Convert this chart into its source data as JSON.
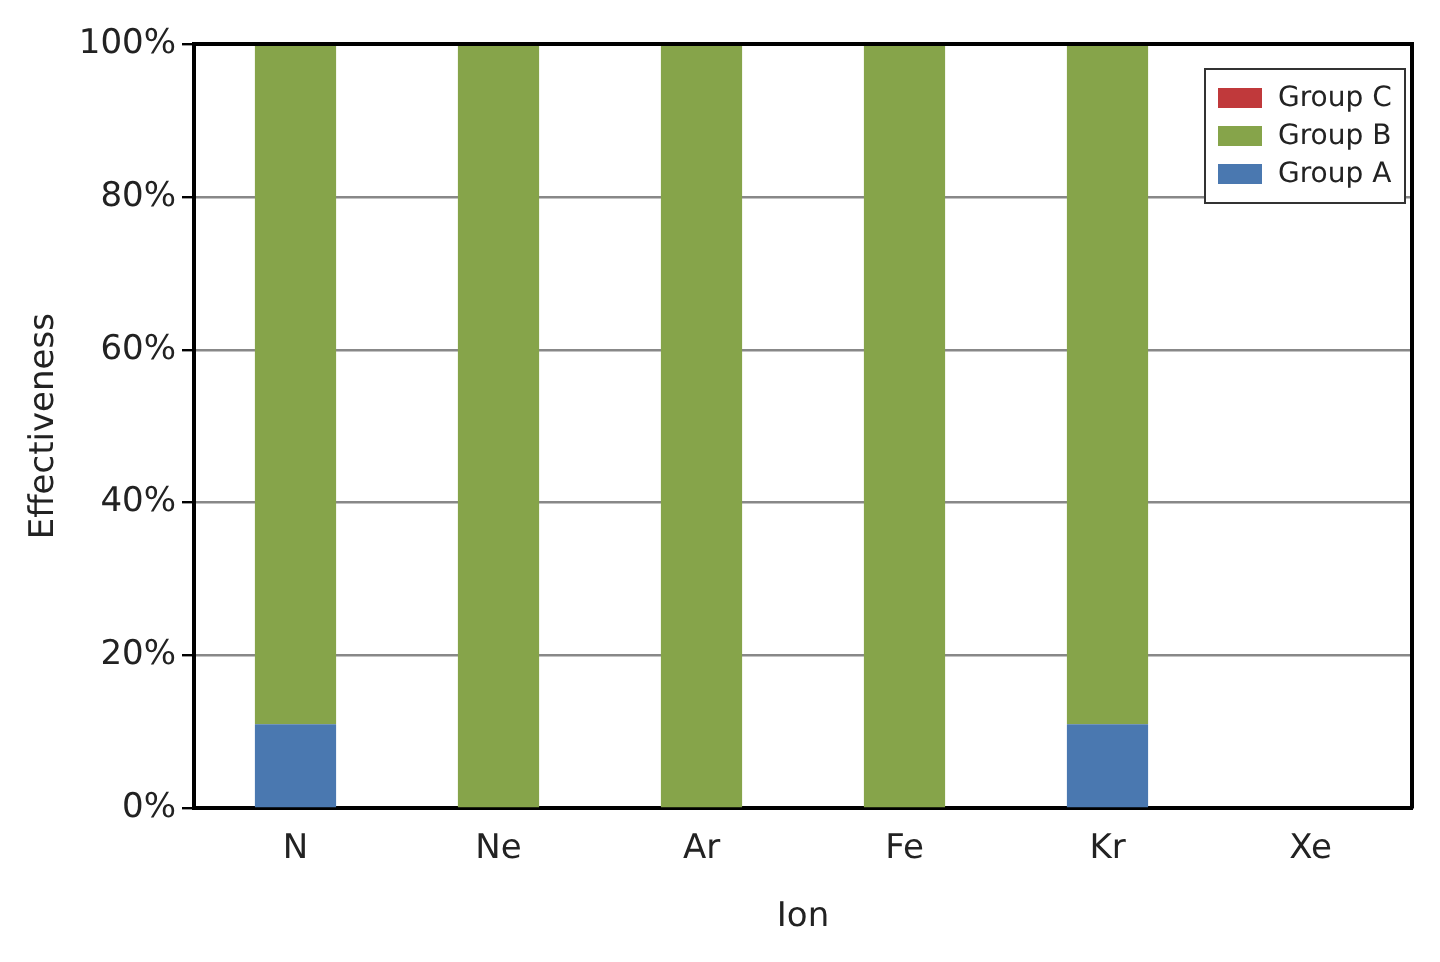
{
  "chart_data": {
    "type": "bar",
    "stacked": true,
    "xlabel": "Ion",
    "ylabel": "Effectiveness",
    "categories": [
      "N",
      "Ne",
      "Ar",
      "Fe",
      "Kr",
      "Xe"
    ],
    "series": [
      {
        "name": "Group A",
        "color": "#4a78b0",
        "values": [
          11,
          0,
          0,
          0,
          11,
          0
        ]
      },
      {
        "name": "Group B",
        "color": "#86a44a",
        "values": [
          89,
          100,
          100,
          100,
          89,
          0
        ]
      },
      {
        "name": "Group C",
        "color": "#c0393b",
        "values": [
          0,
          0,
          0,
          0,
          0,
          0
        ]
      }
    ],
    "ylim": [
      0,
      100
    ],
    "yticks": [
      {
        "value": 0,
        "label": "0%"
      },
      {
        "value": 20,
        "label": "20%"
      },
      {
        "value": 40,
        "label": "40%"
      },
      {
        "value": 60,
        "label": "60%"
      },
      {
        "value": 80,
        "label": "80%"
      },
      {
        "value": 100,
        "label": "100%"
      }
    ],
    "grid": "y",
    "legend": "top right"
  }
}
